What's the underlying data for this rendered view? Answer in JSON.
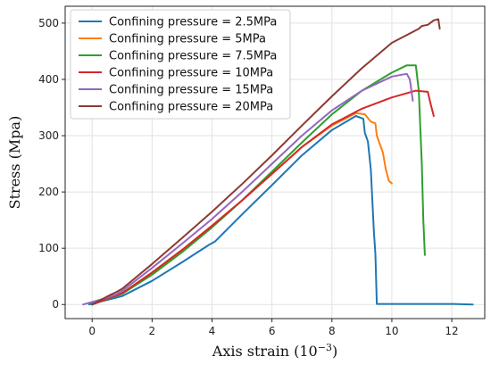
{
  "chart_data": {
    "type": "line",
    "xlabel": "Axis strain (10",
    "xlabel_sup": "−3",
    "xlabel_close": ")",
    "ylabel": "Stress (Mpa)",
    "xlim": [
      -0.9,
      13.1
    ],
    "ylim": [
      -25,
      530
    ],
    "xticks": [
      0,
      2,
      4,
      6,
      8,
      10,
      12
    ],
    "yticks": [
      0,
      100,
      200,
      300,
      400,
      500
    ],
    "grid": true,
    "legend_position": "top-left",
    "series": [
      {
        "name": "Confining pressure = 2.5MPa",
        "color": "#1f77b4",
        "points": [
          [
            -0.1,
            0
          ],
          [
            1,
            15
          ],
          [
            2,
            42
          ],
          [
            3,
            75
          ],
          [
            3.9,
            106
          ],
          [
            4.1,
            112
          ],
          [
            5,
            160
          ],
          [
            6,
            212
          ],
          [
            7,
            265
          ],
          [
            8,
            310
          ],
          [
            8.8,
            335
          ],
          [
            9.05,
            330
          ],
          [
            9.1,
            305
          ],
          [
            9.2,
            290
          ],
          [
            9.3,
            240
          ],
          [
            9.4,
            130
          ],
          [
            9.45,
            90
          ],
          [
            9.5,
            1
          ],
          [
            10,
            1
          ],
          [
            11,
            1
          ],
          [
            12,
            1
          ],
          [
            12.7,
            0
          ]
        ]
      },
      {
        "name": "Confining pressure = 5MPa",
        "color": "#ff7f0e",
        "points": [
          [
            0,
            0
          ],
          [
            1,
            20
          ],
          [
            2,
            57
          ],
          [
            3,
            97
          ],
          [
            4,
            140
          ],
          [
            5,
            185
          ],
          [
            6,
            232
          ],
          [
            7,
            280
          ],
          [
            8,
            318
          ],
          [
            8.8,
            340
          ],
          [
            9.1,
            338
          ],
          [
            9.3,
            325
          ],
          [
            9.45,
            322
          ],
          [
            9.5,
            300
          ],
          [
            9.7,
            270
          ],
          [
            9.8,
            240
          ],
          [
            9.9,
            220
          ],
          [
            10,
            215
          ]
        ]
      },
      {
        "name": "Confining pressure = 7.5MPa",
        "color": "#2ca02c",
        "points": [
          [
            0,
            0
          ],
          [
            1,
            19
          ],
          [
            2,
            53
          ],
          [
            3,
            93
          ],
          [
            4,
            137
          ],
          [
            5,
            185
          ],
          [
            6,
            236
          ],
          [
            7,
            288
          ],
          [
            8,
            338
          ],
          [
            9,
            380
          ],
          [
            10,
            412
          ],
          [
            10.5,
            425
          ],
          [
            10.8,
            425
          ],
          [
            10.9,
            380
          ],
          [
            11,
            250
          ],
          [
            11.05,
            150
          ],
          [
            11.1,
            88
          ]
        ]
      },
      {
        "name": "Confining pressure = 10MPa",
        "color": "#d62728",
        "points": [
          [
            0,
            0
          ],
          [
            1,
            20
          ],
          [
            2,
            57
          ],
          [
            3,
            97
          ],
          [
            4,
            140
          ],
          [
            5,
            185
          ],
          [
            6,
            232
          ],
          [
            7,
            280
          ],
          [
            8,
            320
          ],
          [
            9,
            348
          ],
          [
            10,
            368
          ],
          [
            10.8,
            380
          ],
          [
            11.2,
            378
          ],
          [
            11.3,
            355
          ],
          [
            11.4,
            335
          ]
        ]
      },
      {
        "name": "Confining pressure = 15MPa",
        "color": "#9467bd",
        "points": [
          [
            -0.3,
            0
          ],
          [
            0.5,
            12
          ],
          [
            0.8,
            18
          ],
          [
            1,
            24
          ],
          [
            2,
            65
          ],
          [
            3,
            108
          ],
          [
            4,
            152
          ],
          [
            5,
            200
          ],
          [
            6,
            250
          ],
          [
            7,
            300
          ],
          [
            8,
            345
          ],
          [
            9,
            380
          ],
          [
            10,
            405
          ],
          [
            10.5,
            410
          ],
          [
            10.6,
            400
          ],
          [
            10.7,
            362
          ]
        ]
      },
      {
        "name": "Confining pressure = 20MPa",
        "color": "#8c3a32",
        "points": [
          [
            0,
            0
          ],
          [
            0.6,
            17
          ],
          [
            0.8,
            22
          ],
          [
            1,
            28
          ],
          [
            2,
            72
          ],
          [
            3,
            118
          ],
          [
            4,
            165
          ],
          [
            5,
            214
          ],
          [
            6,
            265
          ],
          [
            7,
            318
          ],
          [
            8,
            370
          ],
          [
            9,
            420
          ],
          [
            10,
            465
          ],
          [
            10.9,
            490
          ],
          [
            11,
            495
          ],
          [
            11.2,
            497
          ],
          [
            11.4,
            505
          ],
          [
            11.55,
            507
          ],
          [
            11.6,
            490
          ]
        ]
      }
    ]
  }
}
